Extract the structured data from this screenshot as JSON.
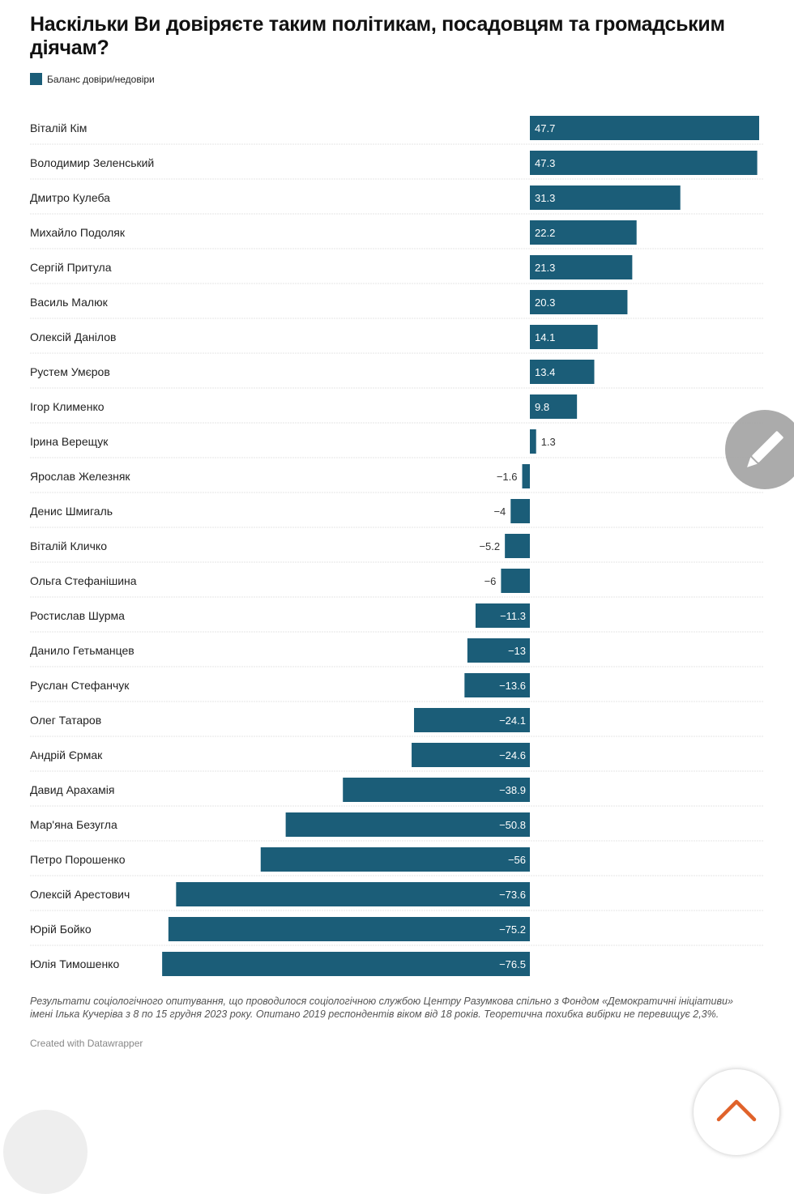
{
  "header": {
    "title": "Наскільки Ви довіряєте таким політикам, посадовцям та громадським діячам?"
  },
  "legend": {
    "label": "Баланс довіри/недовіри",
    "color": "#1b5d78"
  },
  "chart_data": {
    "type": "bar",
    "orientation": "horizontal",
    "title": "Наскільки Ви довіряєте таким політикам, посадовцям та громадським діячам?",
    "xlabel": "",
    "ylabel": "",
    "xlim": [
      -76.5,
      47.7
    ],
    "grid": false,
    "legend_position": "top-left",
    "categories": [
      "Віталій Кім",
      "Володимир Зеленський",
      "Дмитро Кулеба",
      "Михайло Подоляк",
      "Сергій Притула",
      "Василь Малюк",
      "Олексій Данілов",
      "Рустем Умєров",
      "Ігор Клименко",
      "Ірина Верещук",
      "Ярослав Железняк",
      "Денис Шмигаль",
      "Віталій Кличко",
      "Ольга Стефанішина",
      "Ростислав Шурма",
      "Данило Гетьманцев",
      "Руслан Стефанчук",
      "Олег Татаров",
      "Андрій Єрмак",
      "Давид Арахамія",
      "Мар'яна Безугла",
      "Петро Порошенко",
      "Олексій Арестович",
      "Юрій Бойко",
      "Юлія Тимошенко"
    ],
    "series": [
      {
        "name": "Баланс довіри/недовіри",
        "color": "#1b5d78",
        "values": [
          47.7,
          47.3,
          31.3,
          22.2,
          21.3,
          20.3,
          14.1,
          13.4,
          9.8,
          1.3,
          -1.6,
          -4,
          -5.2,
          -6,
          -11.3,
          -13,
          -13.6,
          -24.1,
          -24.6,
          -38.9,
          -50.8,
          -56,
          -73.6,
          -75.2,
          -76.5
        ]
      }
    ],
    "value_labels": [
      "47.7",
      "47.3",
      "31.3",
      "22.2",
      "21.3",
      "20.3",
      "14.1",
      "13.4",
      "9.8",
      "1.3",
      "−1.6",
      "−4",
      "−5.2",
      "−6",
      "−11.3",
      "−13",
      "−13.6",
      "−24.1",
      "−24.6",
      "−38.9",
      "−50.8",
      "−56",
      "−73.6",
      "−75.2",
      "−76.5"
    ]
  },
  "footer": {
    "note": "Результати соціологічного опитування, що проводилося соціологічною службою Центру Разумкова спільно з Фондом «Демократичні ініціативи» імені Ілька Кучеріва з 8 по 15 грудня 2023 року. Опитано 2019 респондентів віком від 18 років. Теоретична похибка вибірки не перевищує 2,3%.",
    "credit": "Created with Datawrapper"
  },
  "controls": {
    "edit_icon": "pencil-icon",
    "scroll_up_icon": "chevron-up-icon",
    "accent": "#e0622a"
  }
}
